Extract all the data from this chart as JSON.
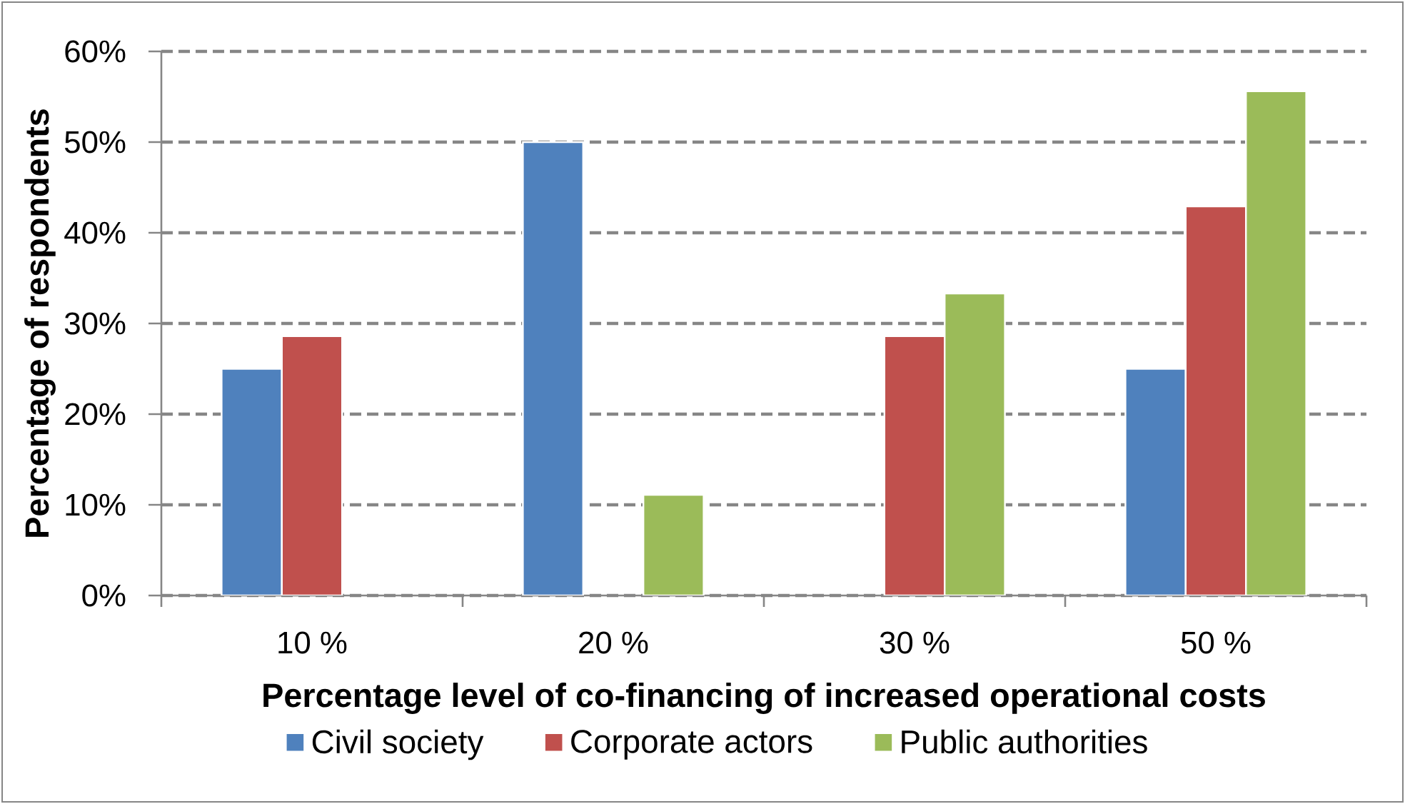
{
  "chart_data": {
    "type": "bar",
    "xlabel": "Percentage level of co-financing of increased operational costs",
    "ylabel": "Percentage of respondents",
    "categories": [
      "10 %",
      "20 %",
      "30 %",
      "50 %"
    ],
    "series": [
      {
        "name": "Civil society",
        "color": "#4f81bd",
        "values": [
          25,
          50,
          null,
          25
        ]
      },
      {
        "name": "Corporate actors",
        "color": "#c0504d",
        "values": [
          28.6,
          null,
          28.6,
          42.9
        ]
      },
      {
        "name": "Public authorities",
        "color": "#9bbb59",
        "values": [
          null,
          11.1,
          33.3,
          55.6
        ]
      }
    ],
    "ylim": [
      0,
      60
    ],
    "yticks": [
      {
        "value": 0,
        "label": "0%"
      },
      {
        "value": 10,
        "label": "10%"
      },
      {
        "value": 20,
        "label": "20%"
      },
      {
        "value": 30,
        "label": "30%"
      },
      {
        "value": 40,
        "label": "40%"
      },
      {
        "value": 50,
        "label": "50%"
      },
      {
        "value": 60,
        "label": "60%"
      }
    ],
    "grid": "y",
    "legend": "bottom"
  }
}
